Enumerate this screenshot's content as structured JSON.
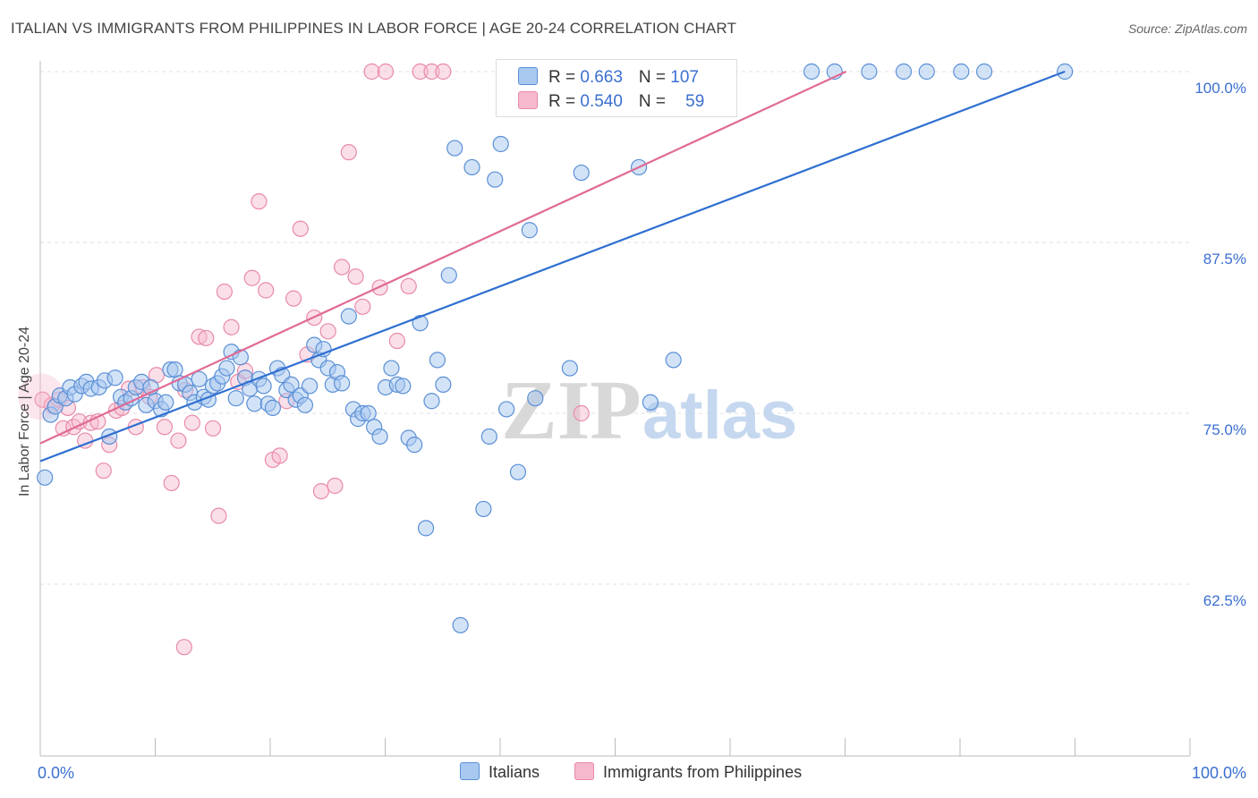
{
  "header": {
    "title": "ITALIAN VS IMMIGRANTS FROM PHILIPPINES IN LABOR FORCE | AGE 20-24 CORRELATION CHART",
    "source": "Source: ZipAtlas.com"
  },
  "watermark": {
    "zip": "ZIP",
    "atlas": "atlas"
  },
  "legend": {
    "italians": {
      "r_label": "R = ",
      "r_value": "0.663",
      "n_label": "N = ",
      "n_value": "107"
    },
    "philippines": {
      "r_label": "R = ",
      "r_value": "0.540",
      "n_label": "N = ",
      "n_value": "59"
    }
  },
  "colors": {
    "blue_fill": "#a8c8f0",
    "blue_stroke": "#5a8fd6",
    "blue_line": "#2f6fd0",
    "pink_fill": "#f6b8cc",
    "pink_stroke": "#e88aa8",
    "pink_line": "#e06a94",
    "axis_label": "#3b6fd1"
  },
  "chart_data": {
    "type": "scatter",
    "title": "ITALIAN VS IMMIGRANTS FROM PHILIPPINES IN LABOR FORCE | AGE 20-24 CORRELATION CHART",
    "xlabel": "",
    "ylabel": "In Labor Force | Age 20-24",
    "xlim": [
      0,
      100
    ],
    "ylim": [
      52,
      101
    ],
    "x_tick_labels": [
      "0.0%",
      "100.0%"
    ],
    "y_ticks": [
      62.5,
      75.0,
      87.5,
      100.0
    ],
    "y_tick_labels": [
      "62.5%",
      "75.0%",
      "87.5%",
      "100.0%"
    ],
    "grid": true,
    "legend_position": "top-center",
    "series": [
      {
        "name": "Italians",
        "points": [
          [
            0.4,
            70.3
          ],
          [
            0.9,
            74.9
          ],
          [
            1.3,
            75.5
          ],
          [
            1.7,
            76.3
          ],
          [
            2.2,
            76.1
          ],
          [
            2.6,
            76.9
          ],
          [
            3.0,
            76.4
          ],
          [
            3.6,
            77.0
          ],
          [
            4.0,
            77.3
          ],
          [
            4.4,
            76.8
          ],
          [
            5.1,
            76.9
          ],
          [
            5.6,
            77.4
          ],
          [
            6.0,
            73.3
          ],
          [
            6.5,
            77.6
          ],
          [
            7.0,
            76.2
          ],
          [
            7.4,
            75.8
          ],
          [
            7.9,
            76.1
          ],
          [
            8.3,
            76.9
          ],
          [
            8.8,
            77.3
          ],
          [
            9.2,
            75.6
          ],
          [
            9.6,
            76.9
          ],
          [
            10.0,
            75.9
          ],
          [
            10.5,
            75.3
          ],
          [
            10.9,
            75.8
          ],
          [
            11.3,
            78.2
          ],
          [
            11.7,
            78.2
          ],
          [
            12.1,
            77.2
          ],
          [
            12.6,
            77.1
          ],
          [
            13.0,
            76.5
          ],
          [
            13.4,
            75.8
          ],
          [
            13.8,
            77.5
          ],
          [
            14.2,
            76.2
          ],
          [
            14.6,
            76.0
          ],
          [
            15.0,
            77.0
          ],
          [
            15.4,
            77.2
          ],
          [
            15.8,
            77.7
          ],
          [
            16.2,
            78.3
          ],
          [
            16.6,
            79.5
          ],
          [
            17.0,
            76.1
          ],
          [
            17.4,
            79.1
          ],
          [
            17.8,
            77.6
          ],
          [
            18.2,
            76.8
          ],
          [
            18.6,
            75.7
          ],
          [
            19.0,
            77.5
          ],
          [
            19.4,
            77.0
          ],
          [
            19.8,
            75.7
          ],
          [
            20.2,
            75.4
          ],
          [
            20.6,
            78.3
          ],
          [
            21.0,
            77.8
          ],
          [
            21.4,
            76.7
          ],
          [
            21.8,
            77.1
          ],
          [
            22.2,
            76.0
          ],
          [
            22.6,
            76.3
          ],
          [
            23.0,
            75.6
          ],
          [
            23.4,
            77.0
          ],
          [
            23.8,
            80.0
          ],
          [
            24.2,
            78.9
          ],
          [
            24.6,
            79.7
          ],
          [
            25.0,
            78.3
          ],
          [
            25.4,
            77.1
          ],
          [
            25.8,
            78.0
          ],
          [
            26.2,
            77.2
          ],
          [
            26.8,
            82.1
          ],
          [
            27.2,
            75.3
          ],
          [
            27.6,
            74.6
          ],
          [
            28.0,
            75.0
          ],
          [
            28.5,
            75.0
          ],
          [
            29.0,
            74.0
          ],
          [
            29.5,
            73.3
          ],
          [
            30.0,
            76.9
          ],
          [
            30.5,
            78.3
          ],
          [
            31.0,
            77.1
          ],
          [
            31.5,
            77.0
          ],
          [
            32.0,
            73.2
          ],
          [
            32.5,
            72.7
          ],
          [
            33.0,
            81.6
          ],
          [
            33.5,
            66.6
          ],
          [
            34.0,
            75.9
          ],
          [
            34.5,
            78.9
          ],
          [
            35.0,
            77.1
          ],
          [
            35.5,
            85.1
          ],
          [
            36.0,
            94.4
          ],
          [
            36.5,
            59.5
          ],
          [
            37.5,
            93.0
          ],
          [
            38.5,
            68.0
          ],
          [
            39.0,
            73.3
          ],
          [
            39.5,
            92.1
          ],
          [
            40.0,
            94.7
          ],
          [
            40.5,
            75.3
          ],
          [
            41.5,
            70.7
          ],
          [
            42.5,
            88.4
          ],
          [
            43.0,
            76.1
          ],
          [
            44.0,
            100.0
          ],
          [
            46.0,
            78.3
          ],
          [
            47.0,
            92.6
          ],
          [
            49.0,
            100.0
          ],
          [
            52.0,
            93.0
          ],
          [
            53.0,
            75.8
          ],
          [
            55.0,
            78.9
          ],
          [
            67.0,
            100.0
          ],
          [
            69.0,
            100.0
          ],
          [
            72.0,
            100.0
          ],
          [
            75.0,
            100.0
          ],
          [
            77.0,
            100.0
          ],
          [
            80.0,
            100.0
          ],
          [
            82.0,
            100.0
          ],
          [
            89.0,
            100.0
          ]
        ]
      },
      {
        "name": "Immigrants from Philippines",
        "points": [
          [
            0.2,
            76.0
          ],
          [
            1.0,
            75.6
          ],
          [
            1.6,
            76.0
          ],
          [
            2.0,
            73.9
          ],
          [
            2.4,
            75.4
          ],
          [
            2.9,
            74.0
          ],
          [
            3.4,
            74.4
          ],
          [
            3.9,
            73.0
          ],
          [
            4.4,
            74.3
          ],
          [
            5.0,
            74.4
          ],
          [
            5.5,
            70.8
          ],
          [
            6.0,
            72.7
          ],
          [
            6.6,
            75.2
          ],
          [
            7.1,
            75.4
          ],
          [
            7.7,
            76.8
          ],
          [
            8.3,
            74.0
          ],
          [
            8.9,
            76.9
          ],
          [
            9.5,
            76.2
          ],
          [
            10.1,
            77.8
          ],
          [
            10.8,
            74.0
          ],
          [
            11.4,
            69.9
          ],
          [
            12.0,
            73.0
          ],
          [
            12.6,
            76.7
          ],
          [
            13.2,
            74.3
          ],
          [
            13.8,
            80.6
          ],
          [
            14.4,
            80.5
          ],
          [
            15.0,
            73.9
          ],
          [
            15.5,
            67.5
          ],
          [
            16.0,
            83.9
          ],
          [
            16.6,
            81.3
          ],
          [
            17.2,
            77.3
          ],
          [
            17.8,
            78.1
          ],
          [
            18.4,
            84.9
          ],
          [
            19.0,
            90.5
          ],
          [
            19.6,
            84.0
          ],
          [
            20.2,
            71.6
          ],
          [
            20.8,
            71.9
          ],
          [
            21.4,
            75.9
          ],
          [
            22.0,
            83.4
          ],
          [
            22.6,
            88.5
          ],
          [
            23.2,
            79.3
          ],
          [
            23.8,
            82.0
          ],
          [
            24.4,
            69.3
          ],
          [
            25.0,
            81.0
          ],
          [
            25.6,
            69.7
          ],
          [
            26.2,
            85.7
          ],
          [
            26.8,
            94.1
          ],
          [
            27.4,
            85.0
          ],
          [
            28.0,
            82.8
          ],
          [
            28.8,
            100.0
          ],
          [
            29.5,
            84.2
          ],
          [
            30.0,
            100.0
          ],
          [
            31.0,
            80.3
          ],
          [
            32.0,
            84.3
          ],
          [
            33.0,
            100.0
          ],
          [
            34.0,
            100.0
          ],
          [
            35.0,
            100.0
          ],
          [
            47.0,
            75.0
          ],
          [
            12.5,
            57.9
          ]
        ]
      }
    ],
    "trend_lines": [
      {
        "series": "Italians",
        "from": [
          0,
          71.5
        ],
        "to": [
          89,
          100.0
        ]
      },
      {
        "series": "Immigrants from Philippines",
        "from": [
          0,
          72.8
        ],
        "to": [
          70,
          100.0
        ]
      }
    ]
  },
  "bottom_legend": {
    "italians": "Italians",
    "philippines": "Immigrants from Philippines"
  }
}
